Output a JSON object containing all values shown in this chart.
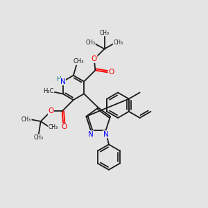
{
  "bg_color": "#e4e4e4",
  "bond_color": "#1a1a1a",
  "bond_width": 1.3,
  "N_color": "#0000ff",
  "O_color": "#ff0000",
  "H_color": "#008080",
  "C_color": "#1a1a1a",
  "figsize": [
    3.0,
    3.0
  ],
  "dpi": 100,
  "xlim": [
    -3.5,
    6.5
  ],
  "ylim": [
    -4.5,
    4.5
  ]
}
